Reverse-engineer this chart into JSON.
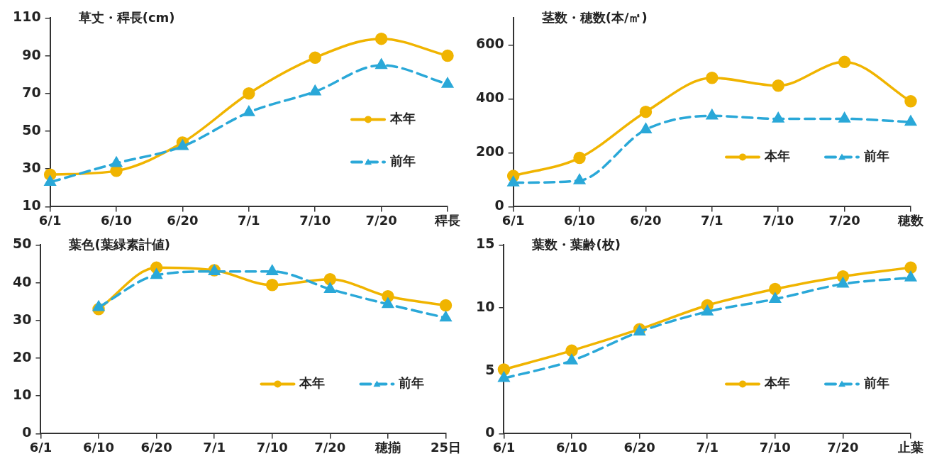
{
  "chart_data": [
    {
      "type": "line",
      "title": "草丈・稈長(cm)",
      "categories": [
        "6/1",
        "6/10",
        "6/20",
        "7/1",
        "7/10",
        "7/20",
        "稈長"
      ],
      "ylim": [
        10,
        110
      ],
      "yticks": [
        10,
        30,
        50,
        70,
        90,
        110
      ],
      "legend": "right",
      "series": [
        {
          "name": "本年",
          "color": "#f0b400",
          "marker": "circle",
          "line_style": "solid",
          "values": [
            27,
            29,
            44,
            70,
            89,
            99,
            90
          ]
        },
        {
          "name": "前年",
          "color": "#2aa8d8",
          "marker": "triangle",
          "line_style": "dashed",
          "values": [
            23,
            33,
            42,
            60,
            71,
            85,
            75
          ]
        }
      ]
    },
    {
      "type": "line",
      "title": "茎数・穂数(本/㎡)",
      "categories": [
        "6/1",
        "6/10",
        "6/20",
        "7/1",
        "7/10",
        "7/20",
        "穂数"
      ],
      "ylim": [
        0,
        700
      ],
      "yticks": [
        0,
        200,
        400,
        600
      ],
      "legend": "bottom right",
      "series": [
        {
          "name": "本年",
          "color": "#f0b400",
          "marker": "circle",
          "line_style": "solid",
          "values": [
            114,
            181,
            352,
            478,
            449,
            537,
            391
          ]
        },
        {
          "name": "前年",
          "color": "#2aa8d8",
          "marker": "triangle",
          "line_style": "dashed",
          "values": [
            89,
            97,
            286,
            337,
            326,
            326,
            314
          ]
        }
      ]
    },
    {
      "type": "line",
      "title": "葉色(葉緑素計値)",
      "categories": [
        "6/1",
        "6/10",
        "6/20",
        "7/1",
        "7/10",
        "7/20",
        "穂揃",
        "25日"
      ],
      "ylim": [
        0,
        50
      ],
      "yticks": [
        0,
        10,
        20,
        30,
        40,
        50
      ],
      "legend": "bottom right",
      "series": [
        {
          "name": "本年",
          "color": "#f0b400",
          "marker": "circle",
          "line_style": "solid",
          "values": [
            null,
            33,
            44,
            43.3,
            39.4,
            40.9,
            36.4,
            34
          ]
        },
        {
          "name": "前年",
          "color": "#2aa8d8",
          "marker": "triangle",
          "line_style": "dashed",
          "values": [
            null,
            33.5,
            42,
            43,
            43,
            38.3,
            34.3,
            30.7
          ]
        }
      ]
    },
    {
      "type": "line",
      "title": "葉数・葉齢(枚)",
      "categories": [
        "6/1",
        "6/10",
        "6/20",
        "7/1",
        "7/10",
        "7/20",
        "止葉"
      ],
      "ylim": [
        0,
        15
      ],
      "yticks": [
        0,
        5,
        10,
        15
      ],
      "legend": "bottom right",
      "series": [
        {
          "name": "本年",
          "color": "#f0b400",
          "marker": "circle",
          "line_style": "solid",
          "values": [
            5.1,
            6.6,
            8.3,
            10.2,
            11.5,
            12.5,
            13.2
          ]
        },
        {
          "name": "前年",
          "color": "#2aa8d8",
          "marker": "triangle",
          "line_style": "dashed",
          "values": [
            4.4,
            5.8,
            8.1,
            9.7,
            10.7,
            11.9,
            12.4
          ]
        }
      ]
    }
  ]
}
